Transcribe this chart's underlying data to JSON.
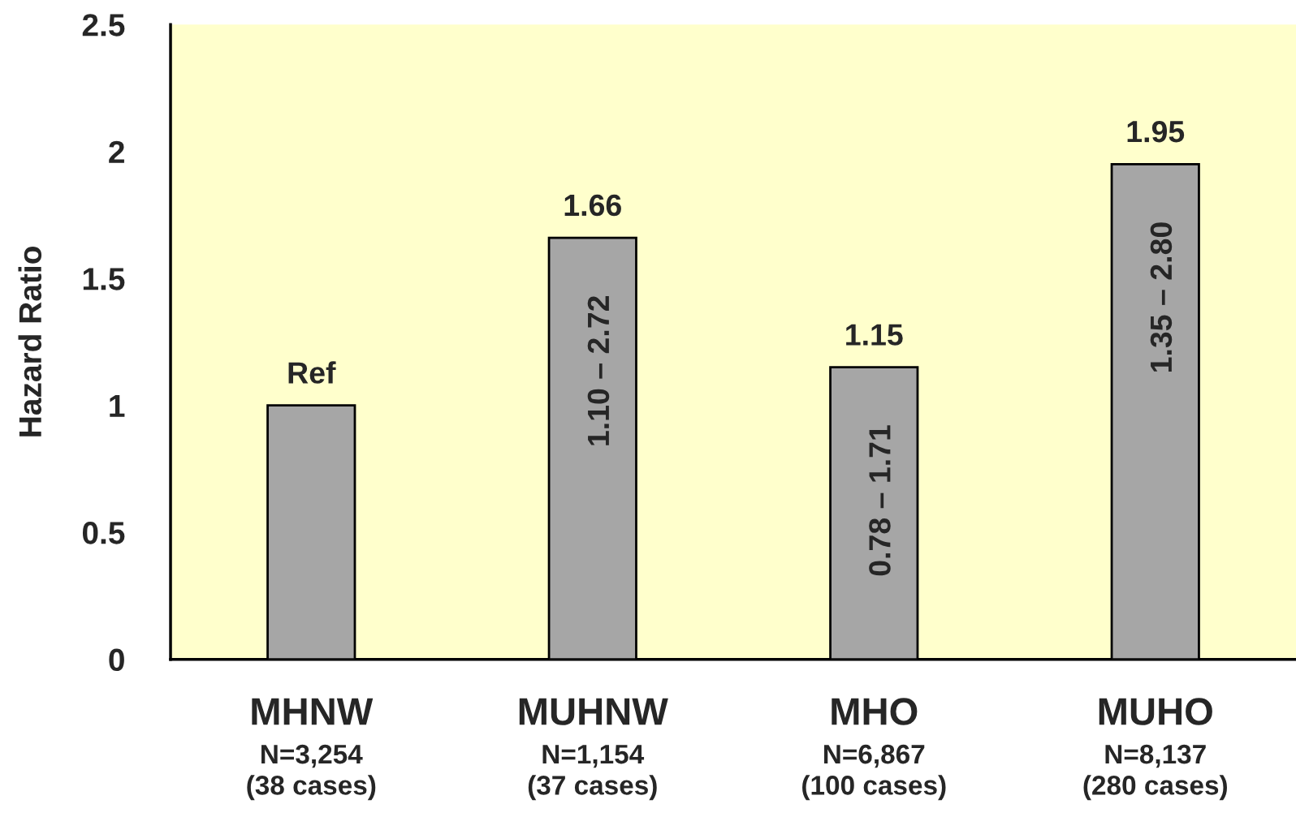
{
  "chart_data": {
    "type": "bar",
    "ylabel": "Hazard Ratio",
    "categories": [
      "MHNW\nN=3,254\n(38 cases)",
      "MUHNW\nN=1,154\n(37 cases)",
      "MHO\nN=6,867\n(100 cases)",
      "MUHO\nN=8,137\n(280 cases)"
    ],
    "series": [
      {
        "color": "#a6a6a6",
        "values": [
          1,
          1.66,
          1.15,
          1.95
        ],
        "value_labels": [
          "Ref",
          "1.66",
          "1.15",
          "1.95"
        ]
      }
    ],
    "ylim": [
      0,
      2.5
    ],
    "yticks": [
      0,
      0.5,
      1,
      1.5,
      2,
      2.5
    ],
    "grid": false,
    "legend": false,
    "annotations": [
      "1.10 – 2.72",
      "0.78 – 1.71",
      "1.35 – 2.80"
    ]
  }
}
